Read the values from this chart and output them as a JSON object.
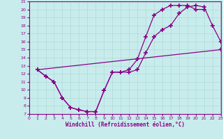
{
  "xlabel": "Windchill (Refroidissement éolien,°C)",
  "background_color": "#c8ecec",
  "grid_color": "#b0d8d8",
  "line_color": "#880088",
  "xlim": [
    0,
    23
  ],
  "ylim": [
    7,
    21
  ],
  "xticks": [
    0,
    1,
    2,
    3,
    4,
    5,
    6,
    7,
    8,
    9,
    10,
    11,
    12,
    13,
    14,
    15,
    16,
    17,
    18,
    19,
    20,
    21,
    22,
    23
  ],
  "yticks": [
    7,
    8,
    9,
    10,
    11,
    12,
    13,
    14,
    15,
    16,
    17,
    18,
    19,
    20,
    21
  ],
  "line1_x": [
    1,
    2,
    3,
    4,
    5,
    6,
    7,
    8,
    9,
    10,
    11,
    12,
    13,
    14,
    15,
    16,
    17,
    18,
    19,
    20,
    21,
    22,
    23
  ],
  "line1_y": [
    12.5,
    11.7,
    11.0,
    9.0,
    7.8,
    7.5,
    7.3,
    7.3,
    9.9,
    12.2,
    12.2,
    12.2,
    12.5,
    14.6,
    16.6,
    17.5,
    18.0,
    19.5,
    20.3,
    20.5,
    20.3,
    18.0,
    16.0
  ],
  "line2_x": [
    1,
    2,
    3,
    4,
    5,
    6,
    7,
    8,
    9,
    10,
    11,
    12,
    13,
    14,
    15,
    16,
    17,
    18,
    19,
    20,
    21
  ],
  "line2_y": [
    12.5,
    11.7,
    11.0,
    9.0,
    7.8,
    7.5,
    7.3,
    7.3,
    9.9,
    12.2,
    12.2,
    12.5,
    13.8,
    16.6,
    19.3,
    20.0,
    20.5,
    20.5,
    20.5,
    20.0,
    20.0
  ],
  "line3_x": [
    1,
    23
  ],
  "line3_y": [
    12.5,
    15.0
  ]
}
